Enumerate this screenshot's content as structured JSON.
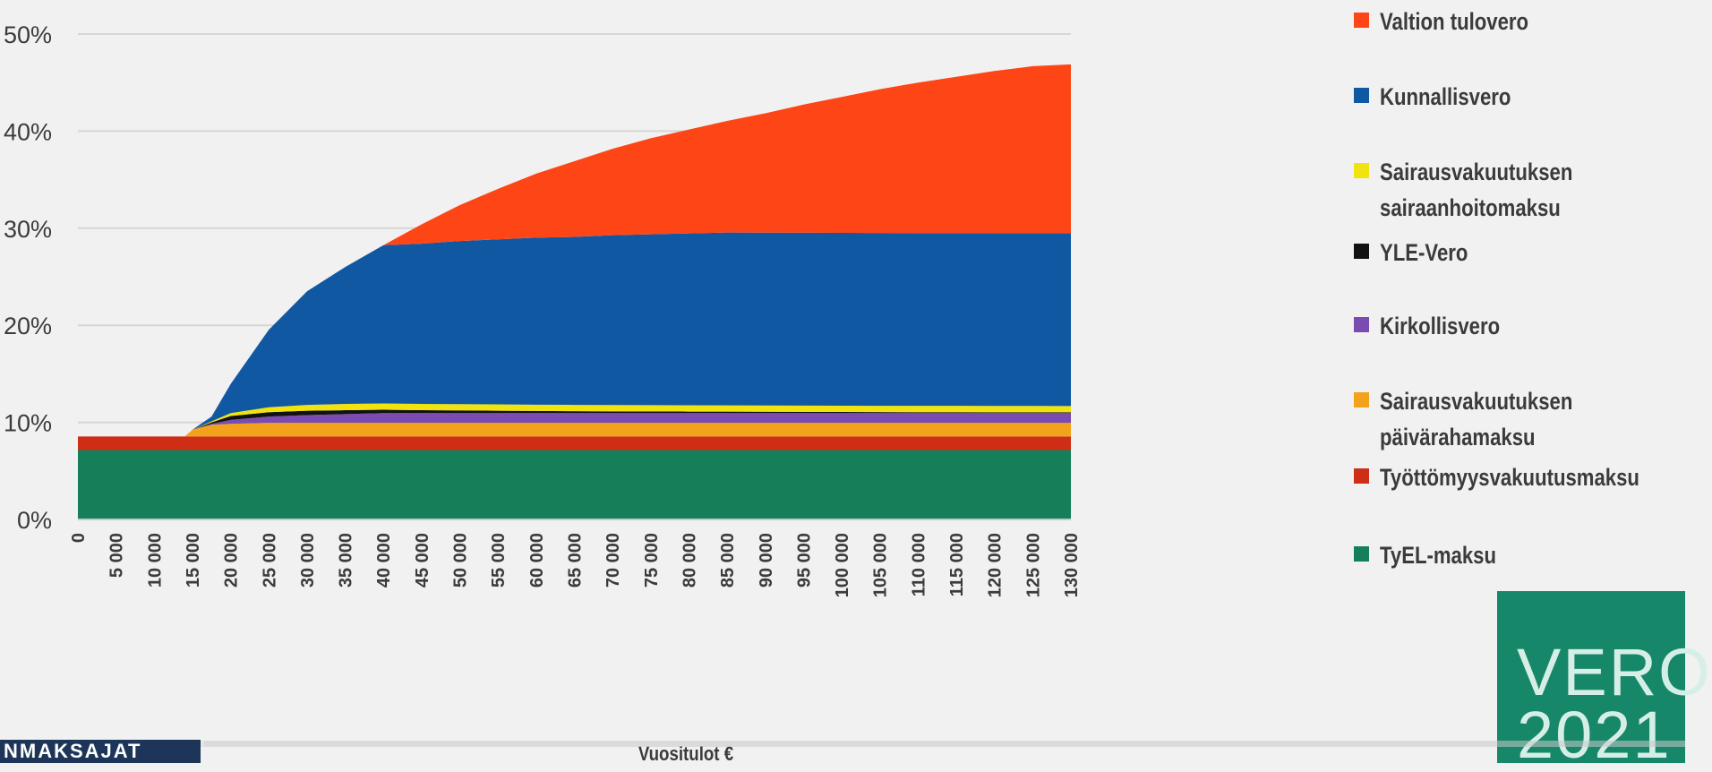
{
  "chart_data": {
    "type": "area",
    "stacked": true,
    "xlabel": "Vuositulot €",
    "ylabel": "",
    "xlim": [
      0,
      130000
    ],
    "ylim": [
      0,
      50
    ],
    "grid": true,
    "legend_position": "right",
    "y_ticks": [
      "0%",
      "10%",
      "20%",
      "30%",
      "40%",
      "50%"
    ],
    "x_ticks": [
      "0",
      "5 000",
      "10 000",
      "15 000",
      "20 000",
      "25 000",
      "30 000",
      "35 000",
      "40 000",
      "45 000",
      "50 000",
      "55 000",
      "60 000",
      "65 000",
      "70 000",
      "75 000",
      "80 000",
      "85 000",
      "90 000",
      "95 000",
      "100 000",
      "105 000",
      "110 000",
      "115 000",
      "120 000",
      "125 000",
      "130 000"
    ],
    "x": [
      0,
      5000,
      10000,
      14000,
      15000,
      17500,
      20000,
      25000,
      30000,
      35000,
      40000,
      45000,
      50000,
      55000,
      60000,
      65000,
      70000,
      75000,
      80000,
      85000,
      90000,
      95000,
      100000,
      105000,
      110000,
      115000,
      120000,
      125000,
      130000
    ],
    "series": [
      {
        "name": "TyEL-maksu",
        "color": "#157f5a",
        "values": [
          7.15,
          7.15,
          7.15,
          7.15,
          7.15,
          7.15,
          7.15,
          7.15,
          7.15,
          7.15,
          7.15,
          7.15,
          7.15,
          7.15,
          7.15,
          7.15,
          7.15,
          7.15,
          7.15,
          7.15,
          7.15,
          7.15,
          7.15,
          7.15,
          7.15,
          7.15,
          7.15,
          7.15,
          7.15
        ]
      },
      {
        "name": "Työttömyysvakuutusmaksu",
        "color": "#cf2e16",
        "values": [
          1.4,
          1.4,
          1.4,
          1.4,
          1.4,
          1.4,
          1.4,
          1.4,
          1.4,
          1.4,
          1.4,
          1.4,
          1.4,
          1.4,
          1.4,
          1.4,
          1.4,
          1.4,
          1.4,
          1.4,
          1.4,
          1.4,
          1.4,
          1.4,
          1.4,
          1.4,
          1.4,
          1.4,
          1.4
        ]
      },
      {
        "name": "Sairausvakuutuksen päivärahamaksu",
        "color": "#f2a21b",
        "values": [
          0,
          0,
          0,
          0,
          0.7,
          1.2,
          1.3,
          1.4,
          1.4,
          1.4,
          1.4,
          1.4,
          1.4,
          1.4,
          1.4,
          1.4,
          1.4,
          1.4,
          1.4,
          1.4,
          1.4,
          1.4,
          1.4,
          1.4,
          1.4,
          1.4,
          1.4,
          1.4,
          1.4
        ]
      },
      {
        "name": "Kirkollisvero",
        "color": "#7a4bb0",
        "values": [
          0,
          0,
          0,
          0,
          0,
          0.1,
          0.4,
          0.65,
          0.8,
          0.9,
          1.0,
          1.0,
          1.0,
          1.0,
          1.0,
          1.0,
          1.0,
          1.0,
          1.0,
          1.0,
          1.0,
          1.0,
          1.0,
          1.0,
          1.0,
          1.0,
          1.0,
          1.0,
          1.0
        ]
      },
      {
        "name": "YLE-Vero",
        "color": "#111111",
        "values": [
          0,
          0,
          0,
          0,
          0,
          0.15,
          0.4,
          0.45,
          0.45,
          0.4,
          0.35,
          0.3,
          0.28,
          0.25,
          0.22,
          0.2,
          0.18,
          0.17,
          0.16,
          0.15,
          0.14,
          0.13,
          0.12,
          0.11,
          0.1,
          0.1,
          0.09,
          0.09,
          0.08
        ]
      },
      {
        "name": "Sairausvakuutuksen sairaanhoitomaksu",
        "color": "#f1e30e",
        "values": [
          0,
          0,
          0,
          0,
          0,
          0.1,
          0.3,
          0.5,
          0.6,
          0.65,
          0.65,
          0.65,
          0.65,
          0.65,
          0.65,
          0.65,
          0.65,
          0.65,
          0.65,
          0.65,
          0.65,
          0.65,
          0.65,
          0.65,
          0.65,
          0.65,
          0.65,
          0.65,
          0.65
        ]
      },
      {
        "name": "Kunnallisvero",
        "color": "#1158a3",
        "values": [
          0,
          0,
          0,
          0,
          0,
          0.5,
          3.0,
          8.0,
          11.7,
          14.1,
          16.3,
          16.5,
          16.8,
          17.0,
          17.2,
          17.3,
          17.5,
          17.6,
          17.7,
          17.8,
          17.8,
          17.8,
          17.8,
          17.8,
          17.8,
          17.8,
          17.8,
          17.8,
          17.8
        ]
      },
      {
        "name": "Valtion tulovero",
        "color": "#fd4515",
        "values": [
          0,
          0,
          0,
          0,
          0,
          0,
          0,
          0,
          0,
          0,
          0,
          2.0,
          3.7,
          5.2,
          6.6,
          7.8,
          8.9,
          9.9,
          10.7,
          11.5,
          12.3,
          13.2,
          14.0,
          14.8,
          15.5,
          16.1,
          16.7,
          17.2,
          17.4
        ]
      }
    ]
  },
  "legend": {
    "items": [
      {
        "label": "Valtion tulovero",
        "color": "#fd4515"
      },
      {
        "label": "Kunnallisvero",
        "color": "#1158a3"
      },
      {
        "label": "Sairausvakuutuksen\nsairaanhoitomaksu",
        "color": "#f1e30e"
      },
      {
        "label": "YLE-Vero",
        "color": "#111111"
      },
      {
        "label": "Kirkollisvero",
        "color": "#7a4bb0"
      },
      {
        "label": "Sairausvakuutuksen\npäivärahamaksu",
        "color": "#f2a21b"
      },
      {
        "label": "Työttömyysvakuutusmaksu",
        "color": "#cf2e16"
      },
      {
        "label": "TyEL-maksu",
        "color": "#157f5a"
      }
    ]
  },
  "brand": {
    "text": "VERO\n2021",
    "color": "#17876a"
  },
  "overlay": {
    "badge_text": "NMAKSAJAT",
    "progress": 0.113,
    "buffered": 0.121
  }
}
